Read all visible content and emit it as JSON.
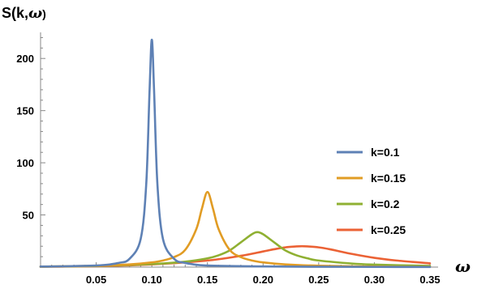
{
  "chart_data": {
    "type": "line",
    "ylabel": {
      "prefix": "S(k,",
      "symbol": "ω",
      "suffix": ")"
    },
    "xlabel": "ω",
    "xlim": [
      0.0,
      0.35
    ],
    "ylim": [
      0,
      225
    ],
    "xticks": [
      {
        "value": 0.05,
        "label": "0.05"
      },
      {
        "value": 0.1,
        "label": "0.10"
      },
      {
        "value": 0.15,
        "label": "0.15"
      },
      {
        "value": 0.2,
        "label": "0.20"
      },
      {
        "value": 0.25,
        "label": "0.25"
      },
      {
        "value": 0.3,
        "label": "0.30"
      },
      {
        "value": 0.35,
        "label": "0.35"
      }
    ],
    "yticks": [
      {
        "value": 50,
        "label": "50"
      },
      {
        "value": 100,
        "label": "100"
      },
      {
        "value": 150,
        "label": "150"
      },
      {
        "value": 200,
        "label": "200"
      }
    ],
    "legend_position": "right",
    "series": [
      {
        "name": "k=0.1",
        "color": "#5E81B5",
        "x": [
          0.0,
          0.05,
          0.07,
          0.08,
          0.09,
          0.095,
          0.098,
          0.1,
          0.102,
          0.105,
          0.11,
          0.12,
          0.13,
          0.15,
          0.2,
          0.25,
          0.3,
          0.35
        ],
        "y": [
          0.5,
          1.5,
          4,
          8,
          27,
          80,
          170,
          218,
          170,
          80,
          27,
          8,
          4,
          1.5,
          0.6,
          0.3,
          0.2,
          0.1
        ]
      },
      {
        "name": "k=0.15",
        "color": "#E19C24",
        "x": [
          0.0,
          0.05,
          0.08,
          0.1,
          0.11,
          0.12,
          0.13,
          0.14,
          0.145,
          0.15,
          0.155,
          0.16,
          0.17,
          0.18,
          0.19,
          0.2,
          0.22,
          0.25,
          0.3,
          0.35
        ],
        "y": [
          0.5,
          1.3,
          2.6,
          4.5,
          6.3,
          9.6,
          16.5,
          36.5,
          56,
          72,
          56,
          36.5,
          16.5,
          9.6,
          6.3,
          4.5,
          2.6,
          1.3,
          0.5,
          0.2
        ]
      },
      {
        "name": "k=0.2",
        "color": "#8FB032",
        "x": [
          0.0,
          0.05,
          0.1,
          0.13,
          0.15,
          0.16,
          0.17,
          0.18,
          0.19,
          0.195,
          0.2,
          0.21,
          0.22,
          0.23,
          0.24,
          0.25,
          0.28,
          0.3,
          0.35
        ],
        "y": [
          0.4,
          1.1,
          2.9,
          5.2,
          8.4,
          11.3,
          16,
          23.7,
          31.5,
          33.5,
          31.5,
          23.7,
          16,
          11.3,
          8.4,
          6.3,
          3.4,
          2.4,
          1.1
        ]
      },
      {
        "name": "k=0.25",
        "color": "#EB6235",
        "x": [
          0.0,
          0.05,
          0.1,
          0.15,
          0.18,
          0.2,
          0.21,
          0.22,
          0.23,
          0.235,
          0.24,
          0.25,
          0.26,
          0.28,
          0.3,
          0.32,
          0.35
        ],
        "y": [
          0.3,
          0.9,
          2.6,
          6.3,
          10.8,
          15,
          17.1,
          18.9,
          19.8,
          20,
          19.8,
          18.9,
          17.1,
          12.6,
          8.9,
          6.3,
          3.6
        ]
      }
    ]
  }
}
